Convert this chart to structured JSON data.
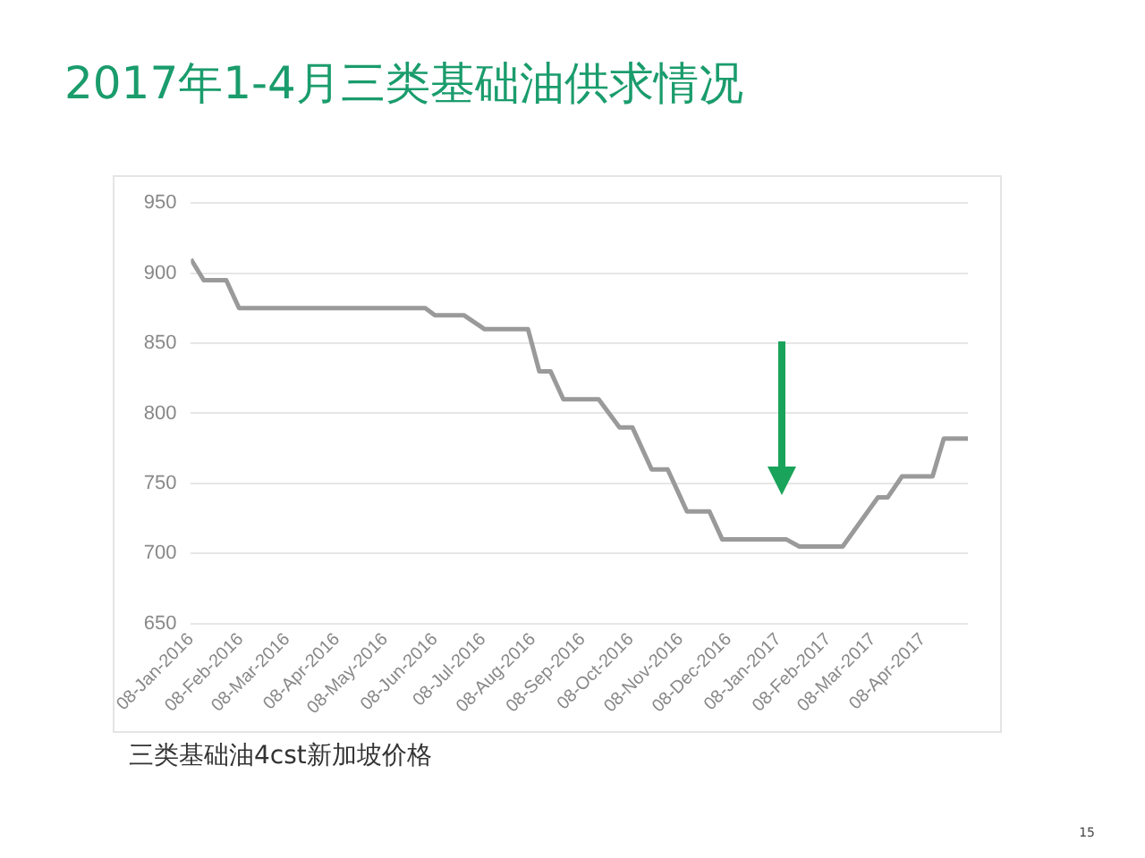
{
  "chart_data": {
    "type": "line",
    "title": "2017年1-4月三类基础油供求情况",
    "annotations": [
      "三类基础油4cst新加坡价格",
      "15"
    ],
    "x": [
      "2016-01-08",
      "2016-01-16",
      "2016-01-30",
      "2016-02-07",
      "2016-06-02",
      "2016-06-08",
      "2016-06-26",
      "2016-07-09",
      "2016-08-05",
      "2016-08-12",
      "2016-08-19",
      "2016-08-27",
      "2016-09-18",
      "2016-10-01",
      "2016-10-09",
      "2016-10-21",
      "2016-10-31",
      "2016-11-12",
      "2016-11-26",
      "2016-12-04",
      "2017-01-13",
      "2017-01-21",
      "2017-02-17",
      "2017-03-11",
      "2017-03-17",
      "2017-03-26",
      "2017-04-14",
      "2017-04-21",
      "2017-05-06"
    ],
    "values": [
      910,
      895,
      895,
      875,
      875,
      870,
      870,
      860,
      860,
      830,
      830,
      810,
      810,
      790,
      790,
      760,
      760,
      730,
      730,
      710,
      710,
      705,
      705,
      740,
      740,
      755,
      755,
      782,
      782
    ],
    "color": "#9a9a9a",
    "marker": "none",
    "grid": "y",
    "xlim": [
      "2016-01-08",
      "2017-05-06"
    ],
    "xticks": [
      {
        "value": "2016-01-08",
        "label": "08-Jan-2016"
      },
      {
        "value": "2016-02-08",
        "label": "08-Feb-2016"
      },
      {
        "value": "2016-03-08",
        "label": "08-Mar-2016"
      },
      {
        "value": "2016-04-08",
        "label": "08-Apr-2016"
      },
      {
        "value": "2016-05-08",
        "label": "08-May-2016"
      },
      {
        "value": "2016-06-08",
        "label": "08-Jun-2016"
      },
      {
        "value": "2016-07-08",
        "label": "08-Jul-2016"
      },
      {
        "value": "2016-08-08",
        "label": "08-Aug-2016"
      },
      {
        "value": "2016-09-08",
        "label": "08-Sep-2016"
      },
      {
        "value": "2016-10-08",
        "label": "08-Oct-2016"
      },
      {
        "value": "2016-11-08",
        "label": "08-Nov-2016"
      },
      {
        "value": "2016-12-08",
        "label": "08-Dec-2016"
      },
      {
        "value": "2017-01-08",
        "label": "08-Jan-2017"
      },
      {
        "value": "2017-02-08",
        "label": "08-Feb-2017"
      },
      {
        "value": "2017-03-08",
        "label": "08-Mar-2017"
      },
      {
        "value": "2017-04-08",
        "label": "08-Apr-2017"
      }
    ],
    "ylim": [
      650,
      950
    ],
    "yticks": [
      650,
      700,
      750,
      800,
      850,
      900,
      950
    ]
  }
}
